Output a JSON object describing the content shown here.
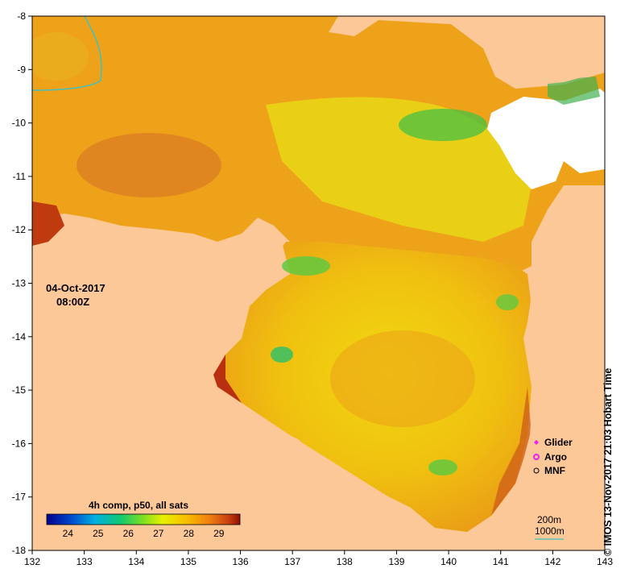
{
  "map": {
    "date_label": "04-Oct-2017",
    "time_label": "08:00Z",
    "composite_label": "4h comp, p50, all sats",
    "colorbar_ticks": [
      "24",
      "25",
      "26",
      "27",
      "28",
      "29"
    ],
    "colorbar_range": [
      23.3,
      29.7
    ],
    "x_ticks": [
      "132",
      "133",
      "134",
      "135",
      "136",
      "137",
      "138",
      "139",
      "140",
      "141",
      "142",
      "143"
    ],
    "y_ticks": [
      "-8",
      "-9",
      "-10",
      "-11",
      "-12",
      "-13",
      "-14",
      "-15",
      "-16",
      "-17",
      "-18"
    ],
    "x_range": [
      132,
      143
    ],
    "y_range": [
      -18,
      -8
    ],
    "legend": {
      "glider": "Glider",
      "argo": "Argo",
      "mnf": "MNF"
    },
    "depth_contours": {
      "c200": "200m",
      "c1000": "1000m"
    },
    "credit": "© IMOS 13-Nov-2017 21:03 Hobart Time",
    "colors": {
      "land": "#fdc898",
      "nodata": "#ffffff",
      "glider": "#ee22ee",
      "argo": "#ee22ee",
      "contour_200": "#e8c8a0",
      "contour_1000": "#40c0c0"
    }
  }
}
